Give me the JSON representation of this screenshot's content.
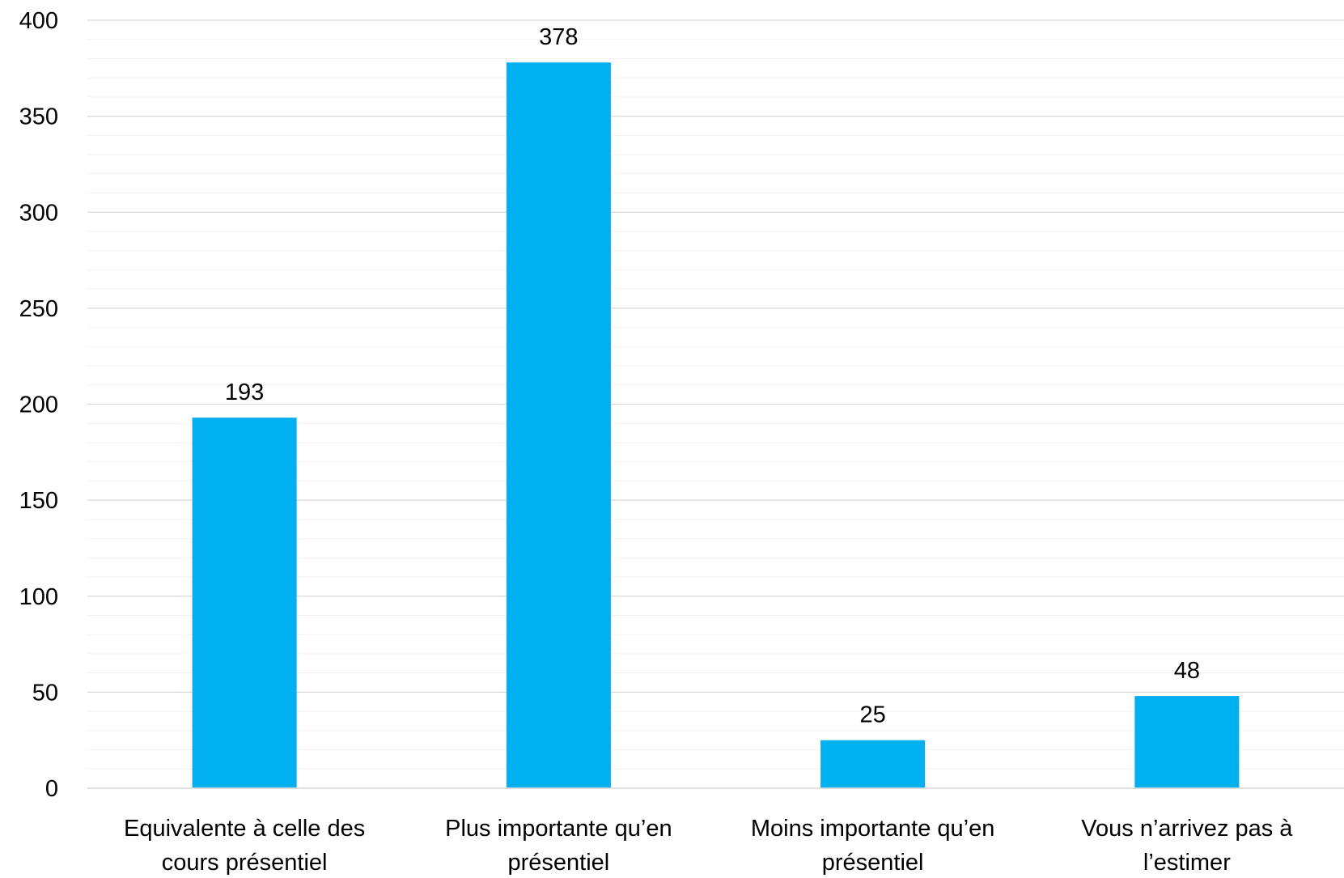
{
  "chart_data": {
    "type": "bar",
    "title": "",
    "xlabel": "",
    "ylabel": "",
    "categories": [
      [
        "Equivalente à celle des",
        "cours présentiel"
      ],
      [
        "Plus importante qu’en",
        "présentiel"
      ],
      [
        "Moins importante qu’en",
        "présentiel"
      ],
      [
        "Vous n’arrivez pas à",
        "l’estimer"
      ]
    ],
    "values": [
      193,
      378,
      25,
      48
    ],
    "data_labels": [
      "193",
      "378",
      "25",
      "48"
    ],
    "ylim": [
      0,
      400
    ],
    "yticks": [
      0,
      50,
      100,
      150,
      200,
      250,
      300,
      350,
      400
    ],
    "minor_tick_step": 10,
    "grid": true,
    "legend": "none",
    "bar_color": "#00b0f0",
    "major_grid_color": "#d9d9d9",
    "minor_grid_color": "#f2f2f2"
  }
}
